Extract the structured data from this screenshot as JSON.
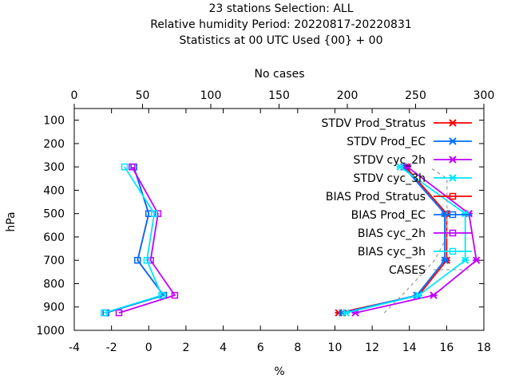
{
  "chart_data": {
    "type": "line",
    "title_lines": [
      "23 stations Selection: ALL",
      "Relative humidity  Period: 20220817-20220831",
      "Statistics at 00 UTC  Used {00} + 00"
    ],
    "x2label": "No cases",
    "xlabel": "%",
    "ylabel": "hPa",
    "xlim": [
      -4,
      18
    ],
    "x2lim": [
      0,
      300
    ],
    "ylim": [
      1000,
      50
    ],
    "y_reversed": true,
    "xticks": [
      "-4",
      "-2",
      "0",
      "2",
      "4",
      "6",
      "8",
      "10",
      "12",
      "14",
      "16",
      "18"
    ],
    "x2ticks": [
      "0",
      "50",
      "100",
      "150",
      "200",
      "250",
      "300"
    ],
    "yticks": [
      "100",
      "200",
      "300",
      "400",
      "500",
      "600",
      "700",
      "800",
      "900",
      "1000"
    ],
    "legend_position": "top-right",
    "series": [
      {
        "name": "STDV Prod_Stratus",
        "color": "#ff0000",
        "marker": "x",
        "x": [
          10.2,
          14.5,
          16.0,
          16.0,
          13.8
        ],
        "y": [
          925,
          850,
          700,
          500,
          300
        ]
      },
      {
        "name": "STDV Prod_EC",
        "color": "#0070ff",
        "marker": "x",
        "x": [
          10.4,
          14.4,
          15.9,
          15.9,
          13.7
        ],
        "y": [
          925,
          850,
          700,
          500,
          300
        ]
      },
      {
        "name": "STDV cyc_2h",
        "color": "#c000ff",
        "marker": "x",
        "x": [
          11.1,
          15.3,
          17.6,
          17.2,
          13.9
        ],
        "y": [
          925,
          850,
          700,
          500,
          300
        ]
      },
      {
        "name": "STDV cyc_3h",
        "color": "#00e6ff",
        "marker": "x",
        "x": [
          10.6,
          14.5,
          17.0,
          17.0,
          13.5
        ],
        "y": [
          925,
          850,
          700,
          500,
          300
        ]
      },
      {
        "name": "BIAS Prod_Stratus",
        "color": "#ff0000",
        "marker": "square",
        "x": [
          -2.3,
          0.8,
          -0.6,
          0.0,
          -0.8
        ],
        "y": [
          925,
          850,
          700,
          500,
          300
        ]
      },
      {
        "name": "BIAS Prod_EC",
        "color": "#0070ff",
        "marker": "square",
        "x": [
          -2.3,
          0.8,
          -0.6,
          0.0,
          -0.8
        ],
        "y": [
          925,
          850,
          700,
          500,
          300
        ]
      },
      {
        "name": "BIAS cyc_2h",
        "color": "#c000ff",
        "marker": "square",
        "x": [
          -1.6,
          1.4,
          0.1,
          0.5,
          -0.9
        ],
        "y": [
          925,
          850,
          700,
          500,
          300
        ]
      },
      {
        "name": "BIAS cyc_3h",
        "color": "#00e6ff",
        "marker": "square",
        "x": [
          -2.4,
          0.7,
          -0.1,
          0.3,
          -1.3
        ],
        "y": [
          925,
          850,
          700,
          500,
          300
        ]
      },
      {
        "name": "CASES",
        "color": "#a0a0a0",
        "dashed": true,
        "axis": "x2",
        "x": [
          227,
          240,
          264,
          273,
          273,
          273,
          273,
          260
        ],
        "y": [
          925,
          850,
          700,
          600,
          500,
          400,
          350,
          300
        ]
      }
    ]
  }
}
